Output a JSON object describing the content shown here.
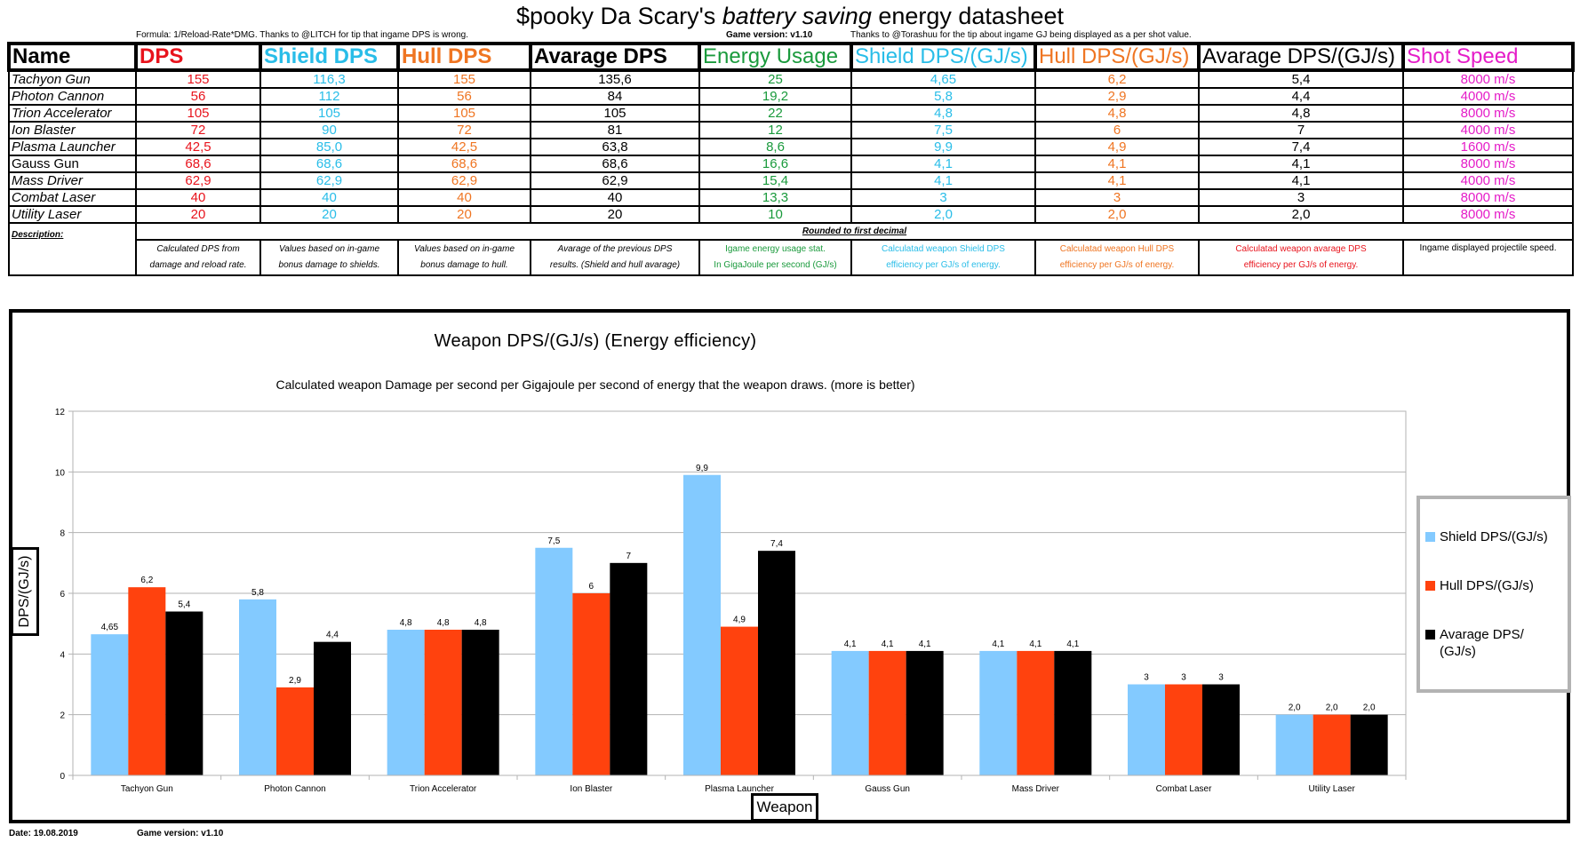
{
  "page": {
    "title_part1": "$pooky Da Scary's ",
    "title_italic": "battery saving",
    "title_part2": " energy datasheet",
    "formula_note": "Formula: 1/Reload-Rate*DMG. Thanks to @LITCH for tip that ingame DPS is wrong.",
    "game_version_note": "Game version: v1.10",
    "gj_note": "Thanks to @Torashuu for the tip about ingame GJ being displayed as a per shot value.",
    "footer_date": "Date: 19.08.2019",
    "footer_version": "Game version: v1.10"
  },
  "colors": {
    "dps": "#e8131c",
    "shield": "#29bde8",
    "hull": "#ef7522",
    "energy": "#1a9a3c",
    "speed": "#e51cc8",
    "bar_shield": "#83caff",
    "bar_hull": "#ff420e",
    "bar_avg": "#000000"
  },
  "table": {
    "headers": [
      "Name",
      "DPS",
      "Shield DPS",
      "Hull DPS",
      "Avarage DPS",
      "Energy Usage",
      "Shield DPS/(GJ/s)",
      "Hull DPS/(GJ/s)",
      "Avarage DPS/(GJ/s)",
      "Shot Speed"
    ],
    "rows": [
      [
        "Tachyon Gun",
        "155",
        "116,3",
        "155",
        "135,6",
        "25",
        "4,65",
        "6,2",
        "5,4",
        "8000 m/s"
      ],
      [
        "Photon Cannon",
        "56",
        "112",
        "56",
        "84",
        "19,2",
        "5,8",
        "2,9",
        "4,4",
        "4000 m/s"
      ],
      [
        "Trion Accelerator",
        "105",
        "105",
        "105",
        "105",
        "22",
        "4,8",
        "4,8",
        "4,8",
        "8000 m/s"
      ],
      [
        "Ion Blaster",
        "72",
        "90",
        "72",
        "81",
        "12",
        "7,5",
        "6",
        "7",
        "4000 m/s"
      ],
      [
        "Plasma Launcher",
        "42,5",
        "85,0",
        "42,5",
        "63,8",
        "8,6",
        "9,9",
        "4,9",
        "7,4",
        "1600 m/s"
      ],
      [
        "Gauss Gun",
        "68,6",
        "68,6",
        "68,6",
        "68,6",
        "16,6",
        "4,1",
        "4,1",
        "4,1",
        "8000 m/s"
      ],
      [
        "Mass Driver",
        "62,9",
        "62,9",
        "62,9",
        "62,9",
        "15,4",
        "4,1",
        "4,1",
        "4,1",
        "4000 m/s"
      ],
      [
        "Combat Laser",
        "40",
        "40",
        "40",
        "40",
        "13,3",
        "3",
        "3",
        "3",
        "8000 m/s"
      ],
      [
        "Utility Laser",
        "20",
        "20",
        "20",
        "20",
        "10",
        "2,0",
        "2,0",
        "2,0",
        "8000 m/s"
      ]
    ],
    "rounded_note": "Rounded to first decimal",
    "description_label": "Description:",
    "descriptions": [
      [
        "Calculated DPS from",
        "damage and reload rate."
      ],
      [
        "Values based on in-game",
        "bonus damage to shields."
      ],
      [
        "Values based on in-game",
        "bonus damage to hull."
      ],
      [
        "Avarage of the previous DPS",
        "results. (Shield and hull avarage)"
      ],
      [
        "Igame energy usage stat.",
        "In GigaJoule per second (GJ/s)"
      ],
      [
        "Calculatad weapon Shield DPS",
        "efficiency per GJ/s of energy."
      ],
      [
        "Calculatad weapon Hull DPS",
        "efficiency per GJ/s of energy."
      ],
      [
        "Calculatad weapon avarage DPS",
        "efficiency per GJ/s of energy."
      ],
      [
        "Ingame displayed projectile speed.",
        ""
      ]
    ]
  },
  "chart_data": {
    "type": "bar",
    "title": "Weapon DPS/(GJ/s) (Energy efficiency)",
    "subtitle": "Calculated weapon Damage per second per Gigajoule per second of energy that the weapon draws. (more is better)",
    "xlabel": "Weapon",
    "ylabel": "DPS/(GJ/s)",
    "ylim": [
      0,
      12
    ],
    "yticks": [
      0,
      2,
      4,
      6,
      8,
      10,
      12
    ],
    "grid": true,
    "legend_position": "right",
    "categories": [
      "Tachyon Gun",
      "Photon Cannon",
      "Trion Accelerator",
      "Ion Blaster",
      "Plasma Launcher",
      "Gauss Gun",
      "Mass Driver",
      "Combat Laser",
      "Utility Laser"
    ],
    "series": [
      {
        "name": "Shield DPS/(GJ/s)",
        "values": [
          4.65,
          5.8,
          4.8,
          7.5,
          9.9,
          4.1,
          4.1,
          3,
          2.0
        ],
        "labels": [
          "4,65",
          "5,8",
          "4,8",
          "7,5",
          "9,9",
          "4,1",
          "4,1",
          "3",
          "2,0"
        ]
      },
      {
        "name": "Hull DPS/(GJ/s)",
        "values": [
          6.2,
          2.9,
          4.8,
          6,
          4.9,
          4.1,
          4.1,
          3,
          2.0
        ],
        "labels": [
          "6,2",
          "2,9",
          "4,8",
          "6",
          "4,9",
          "4,1",
          "4,1",
          "3",
          "2,0"
        ]
      },
      {
        "name": "Avarage DPS/(GJ/s)",
        "values": [
          5.4,
          4.4,
          4.8,
          7,
          7.4,
          4.1,
          4.1,
          3,
          2.0
        ],
        "labels": [
          "5,4",
          "4,4",
          "4,8",
          "7",
          "7,4",
          "4,1",
          "4,1",
          "3",
          "2,0"
        ]
      }
    ],
    "legend_labels": [
      "Shield DPS/(GJ/s)",
      "Hull DPS/(GJ/s)",
      "Avarage DPS/\n(GJ/s)"
    ]
  }
}
